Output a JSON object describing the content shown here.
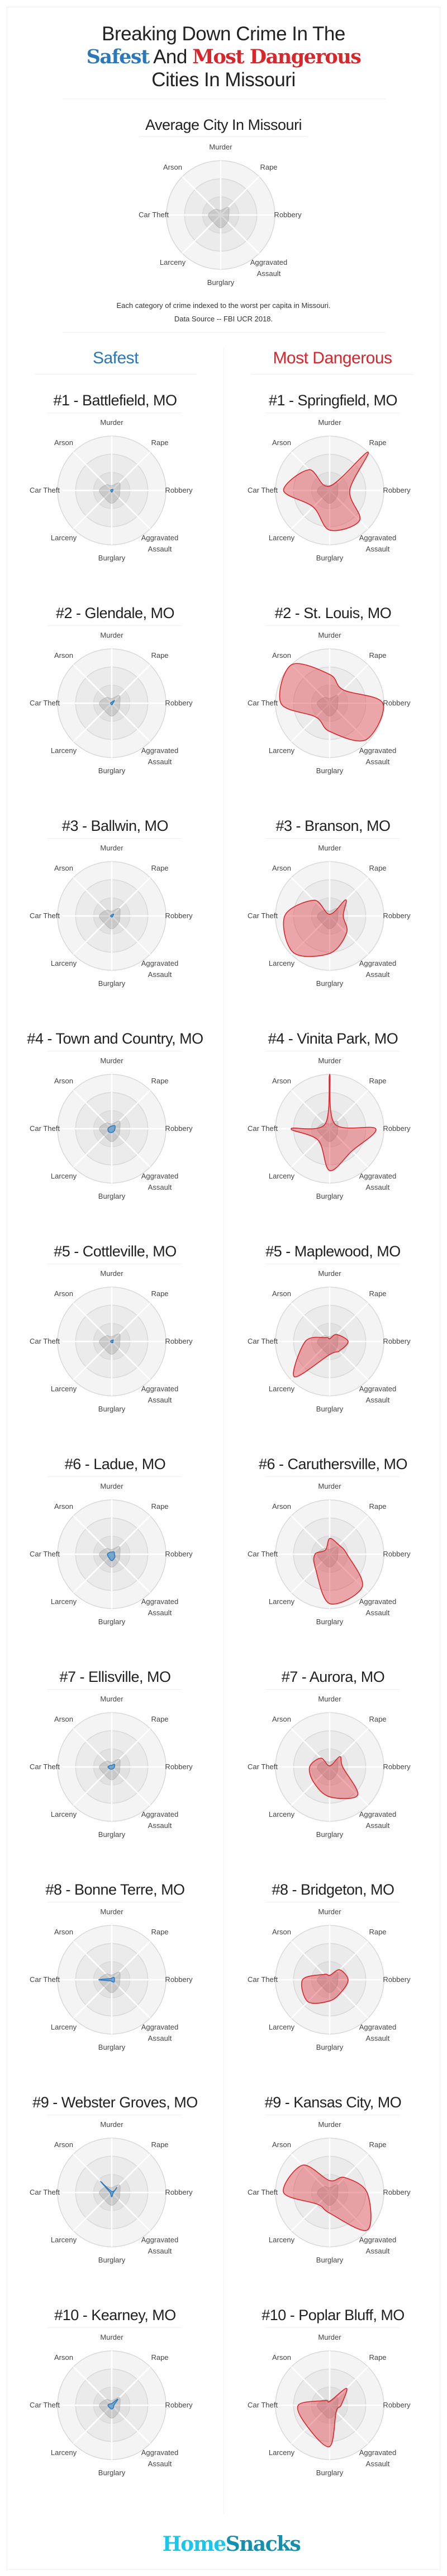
{
  "header": {
    "title_line1": "Breaking Down Crime In The",
    "title_safest": "Safest",
    "title_and": "And",
    "title_dangerous": "Most Dangerous",
    "title_line3": "Cities In Missouri"
  },
  "average": {
    "footnote": "Each category of crime indexed to the worst per capita in Missouri.",
    "source": "Data Source -- FBI UCR 2018."
  },
  "columns": {
    "safest": "Safest",
    "dangerous": "Most Dangerous"
  },
  "logo": {
    "home": "Home",
    "snacks": "Snacks"
  },
  "colors": {
    "safe": "#2a7bbf",
    "danger": "#d7262c",
    "average": "#b4b4b4",
    "logo_home": "#1cc6ea",
    "logo_snacks": "#168fae"
  },
  "chart_data": [
    {
      "type": "radar",
      "group": "average",
      "title": "Average City In Missouri",
      "axes": [
        "Murder",
        "Rape",
        "Robbery",
        "Aggravated Assault",
        "Burglary",
        "Larceny",
        "Car Theft",
        "Arson"
      ],
      "scale_max": 100,
      "values": [
        9,
        20,
        15,
        18,
        24,
        19,
        23,
        15
      ]
    },
    {
      "type": "radar",
      "group": "safest",
      "title": "#1 - Battlefield, MO",
      "axes": [
        "Murder",
        "Rape",
        "Robbery",
        "Aggravated Assault",
        "Burglary",
        "Larceny",
        "Car Theft",
        "Arson"
      ],
      "scale_max": 100,
      "values": [
        1,
        3,
        2,
        2,
        3,
        2,
        2,
        2
      ]
    },
    {
      "type": "radar",
      "group": "dangerous",
      "title": "#1 - Springfield, MO",
      "axes": [
        "Murder",
        "Rape",
        "Robbery",
        "Aggravated Assault",
        "Burglary",
        "Larceny",
        "Car Theft",
        "Arson"
      ],
      "scale_max": 100,
      "values": [
        8,
        100,
        37,
        78,
        73,
        43,
        85,
        54
      ]
    },
    {
      "type": "radar",
      "group": "safest",
      "title": "#2 - Glendale, MO",
      "axes": [
        "Murder",
        "Rape",
        "Robbery",
        "Aggravated Assault",
        "Burglary",
        "Larceny",
        "Car Theft",
        "Arson"
      ],
      "scale_max": 100,
      "values": [
        2,
        7,
        2,
        2,
        3,
        2,
        2,
        2
      ]
    },
    {
      "type": "radar",
      "group": "dangerous",
      "title": "#2 - St. Louis, MO",
      "axes": [
        "Murder",
        "Rape",
        "Robbery",
        "Aggravated Assault",
        "Burglary",
        "Larceny",
        "Car Theft",
        "Arson"
      ],
      "scale_max": 100,
      "values": [
        53,
        35,
        98,
        95,
        52,
        36,
        90,
        100
      ]
    },
    {
      "type": "radar",
      "group": "safest",
      "title": "#3 - Ballwin, MO",
      "axes": [
        "Murder",
        "Rape",
        "Robbery",
        "Aggravated Assault",
        "Burglary",
        "Larceny",
        "Car Theft",
        "Arson"
      ],
      "scale_max": 100,
      "values": [
        2,
        5,
        2,
        2,
        2,
        2,
        2,
        2
      ]
    },
    {
      "type": "radar",
      "group": "dangerous",
      "title": "#3 - Branson, MO",
      "axes": [
        "Murder",
        "Rape",
        "Robbery",
        "Aggravated Assault",
        "Burglary",
        "Larceny",
        "Car Theft",
        "Arson"
      ],
      "scale_max": 100,
      "values": [
        3,
        42,
        25,
        44,
        69,
        95,
        83,
        41
      ]
    },
    {
      "type": "radar",
      "group": "safest",
      "title": "#4 - Town and Country, MO",
      "axes": [
        "Murder",
        "Rape",
        "Robbery",
        "Aggravated Assault",
        "Burglary",
        "Larceny",
        "Car Theft",
        "Arson"
      ],
      "scale_max": 100,
      "values": [
        5,
        8,
        6,
        6,
        7,
        8,
        7,
        5
      ]
    },
    {
      "type": "radar",
      "group": "dangerous",
      "title": "#4 - Vinita Park, MO",
      "axes": [
        "Murder",
        "Rape",
        "Robbery",
        "Aggravated Assault",
        "Burglary",
        "Larceny",
        "Car Theft",
        "Arson"
      ],
      "scale_max": 100,
      "values": [
        100,
        13,
        85,
        58,
        77,
        30,
        71,
        12
      ]
    },
    {
      "type": "radar",
      "group": "safest",
      "title": "#5 - Cottleville, MO",
      "axes": [
        "Murder",
        "Rape",
        "Robbery",
        "Aggravated Assault",
        "Burglary",
        "Larceny",
        "Car Theft",
        "Arson"
      ],
      "scale_max": 100,
      "values": [
        2,
        4,
        2,
        3,
        2,
        2,
        2,
        2
      ]
    },
    {
      "type": "radar",
      "group": "dangerous",
      "title": "#5 - Maplewood, MO",
      "axes": [
        "Murder",
        "Rape",
        "Robbery",
        "Aggravated Assault",
        "Burglary",
        "Larceny",
        "Car Theft",
        "Arson"
      ],
      "scale_max": 100,
      "values": [
        5,
        18,
        34,
        25,
        24,
        92,
        45,
        10
      ]
    },
    {
      "type": "radar",
      "group": "safest",
      "title": "#6 - Ladue, MO",
      "axes": [
        "Murder",
        "Rape",
        "Robbery",
        "Aggravated Assault",
        "Burglary",
        "Larceny",
        "Car Theft",
        "Arson"
      ],
      "scale_max": 100,
      "values": [
        4,
        6,
        5,
        8,
        12,
        8,
        8,
        5
      ]
    },
    {
      "type": "radar",
      "group": "dangerous",
      "title": "#6 - Caruthersville, MO",
      "axes": [
        "Murder",
        "Rape",
        "Robbery",
        "Aggravated Assault",
        "Burglary",
        "Larceny",
        "Car Theft",
        "Arson"
      ],
      "scale_max": 100,
      "values": [
        29,
        24,
        32,
        85,
        91,
        37,
        27,
        11
      ]
    },
    {
      "type": "radar",
      "group": "safest",
      "title": "#7 - Ellisville, MO",
      "axes": [
        "Murder",
        "Rape",
        "Robbery",
        "Aggravated Assault",
        "Burglary",
        "Larceny",
        "Car Theft",
        "Arson"
      ],
      "scale_max": 100,
      "values": [
        3,
        7,
        5,
        4,
        4,
        5,
        7,
        4
      ]
    },
    {
      "type": "radar",
      "group": "dangerous",
      "title": "#7 - Aurora, MO",
      "axes": [
        "Murder",
        "Rape",
        "Robbery",
        "Aggravated Assault",
        "Burglary",
        "Larceny",
        "Car Theft",
        "Arson"
      ],
      "scale_max": 100,
      "values": [
        2,
        27,
        24,
        73,
        55,
        41,
        37,
        23
      ]
    },
    {
      "type": "radar",
      "group": "safest",
      "title": "#8 - Bonne Terre, MO",
      "axes": [
        "Murder",
        "Rape",
        "Robbery",
        "Aggravated Assault",
        "Burglary",
        "Larceny",
        "Car Theft",
        "Arson"
      ],
      "scale_max": 100,
      "values": [
        3,
        6,
        5,
        6,
        3,
        3,
        24,
        3
      ]
    },
    {
      "type": "radar",
      "group": "dangerous",
      "title": "#8 - Bridgeton, MO",
      "axes": [
        "Murder",
        "Rape",
        "Robbery",
        "Aggravated Assault",
        "Burglary",
        "Larceny",
        "Car Theft",
        "Arson"
      ],
      "scale_max": 100,
      "values": [
        8,
        26,
        34,
        31,
        39,
        57,
        50,
        14
      ]
    },
    {
      "type": "radar",
      "group": "safest",
      "title": "#9 - Webster Groves, MO",
      "axes": [
        "Murder",
        "Rape",
        "Robbery",
        "Aggravated Assault",
        "Burglary",
        "Larceny",
        "Car Theft",
        "Arson"
      ],
      "scale_max": 100,
      "values": [
        2,
        13,
        3,
        3,
        8,
        3,
        3,
        29
      ]
    },
    {
      "type": "radar",
      "group": "dangerous",
      "title": "#9 - Kansas City, MO",
      "axes": [
        "Murder",
        "Rape",
        "Robbery",
        "Aggravated Assault",
        "Burglary",
        "Larceny",
        "Car Theft",
        "Arson"
      ],
      "scale_max": 100,
      "values": [
        22,
        39,
        69,
        98,
        38,
        31,
        85,
        71
      ]
    },
    {
      "type": "radar",
      "group": "safest",
      "title": "#10 - Kearney, MO",
      "axes": [
        "Murder",
        "Rape",
        "Robbery",
        "Aggravated Assault",
        "Burglary",
        "Larceny",
        "Car Theft",
        "Arson"
      ],
      "scale_max": 100,
      "values": [
        3,
        16,
        4,
        5,
        7,
        6,
        7,
        4
      ]
    },
    {
      "type": "radar",
      "group": "dangerous",
      "title": "#10 - Poplar Bluff, MO",
      "axes": [
        "Murder",
        "Rape",
        "Robbery",
        "Aggravated Assault",
        "Burglary",
        "Larceny",
        "Car Theft",
        "Arson"
      ],
      "scale_max": 100,
      "values": [
        7,
        44,
        21,
        17,
        76,
        57,
        58,
        12
      ]
    }
  ]
}
